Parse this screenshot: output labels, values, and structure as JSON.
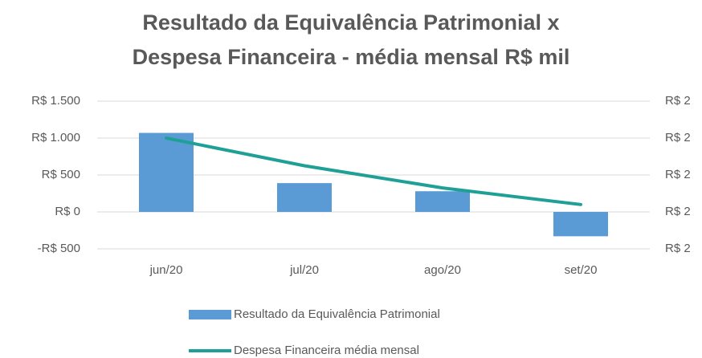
{
  "chart_data": {
    "type": "combo",
    "title": [
      "Resultado da Equivalência Patrimonial x",
      "Despesa Financeira - média mensal R$ mil"
    ],
    "categories": [
      "jun/20",
      "jul/20",
      "ago/20",
      "set/20"
    ],
    "series": [
      {
        "name": "Resultado da Equivalência Patrimonial",
        "type": "bar",
        "color": "#5b9bd5",
        "values": [
          1070,
          390,
          280,
          -330
        ]
      },
      {
        "name": "Despesa Financeira média mensal",
        "type": "line",
        "axis": "y2",
        "color": "#1fa096",
        "values": [
          2.2,
          2.05,
          1.93,
          1.84
        ]
      }
    ],
    "ylim": [
      -500,
      1500
    ],
    "yticks": [
      {
        "value": -500,
        "label": "-R$ 500"
      },
      {
        "value": 0,
        "label": "R$ 0"
      },
      {
        "value": 500,
        "label": "R$ 500"
      },
      {
        "value": 1000,
        "label": "R$ 1.000"
      },
      {
        "value": 1500,
        "label": "R$ 1.500"
      }
    ],
    "y2lim": [
      1.6,
      2.4
    ],
    "y2ticks": [
      {
        "value": 1.6,
        "label": "R$ 2"
      },
      {
        "value": 1.8,
        "label": "R$ 2"
      },
      {
        "value": 2.0,
        "label": "R$ 2"
      },
      {
        "value": 2.2,
        "label": "R$ 2"
      },
      {
        "value": 2.4,
        "label": "R$ 2"
      }
    ],
    "grid": true,
    "legend": "bottom"
  }
}
